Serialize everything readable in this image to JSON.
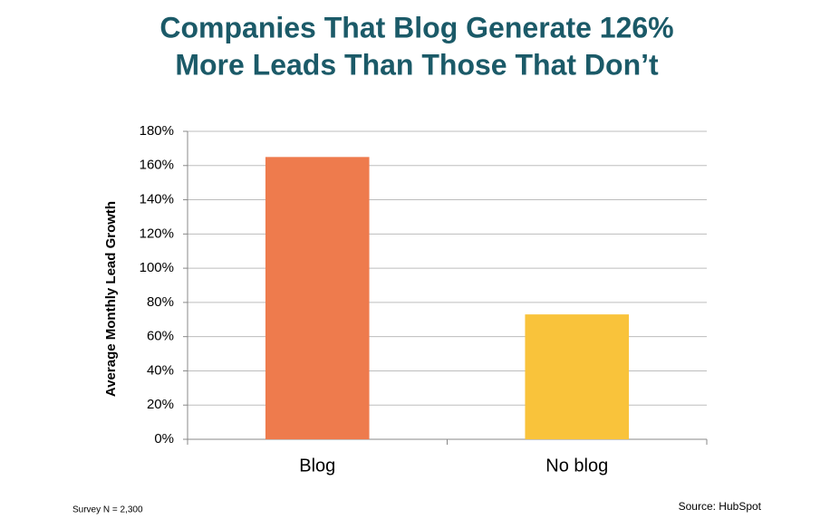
{
  "chart_data": {
    "type": "bar",
    "title": [
      "Companies That Blog Generate 126%",
      "More Leads Than Those That Don’t"
    ],
    "y_label": "Average Monthly Lead Growth",
    "categories": [
      "Blog",
      "No blog"
    ],
    "values": [
      165,
      73
    ],
    "colors": [
      "#ee7b4d",
      "#f9c33b"
    ],
    "ylim": [
      0,
      180
    ],
    "yticks": [
      {
        "value": 0,
        "label": "0%"
      },
      {
        "value": 20,
        "label": "20%"
      },
      {
        "value": 40,
        "label": "40%"
      },
      {
        "value": 60,
        "label": "60%"
      },
      {
        "value": 80,
        "label": "80%"
      },
      {
        "value": 100,
        "label": "100%"
      },
      {
        "value": 120,
        "label": "120%"
      },
      {
        "value": 140,
        "label": "140%"
      },
      {
        "value": 160,
        "label": "160%"
      },
      {
        "value": 180,
        "label": "180%"
      }
    ],
    "grid": true,
    "footnote": "Survey N = 2,300",
    "source": "Source: HubSpot"
  }
}
